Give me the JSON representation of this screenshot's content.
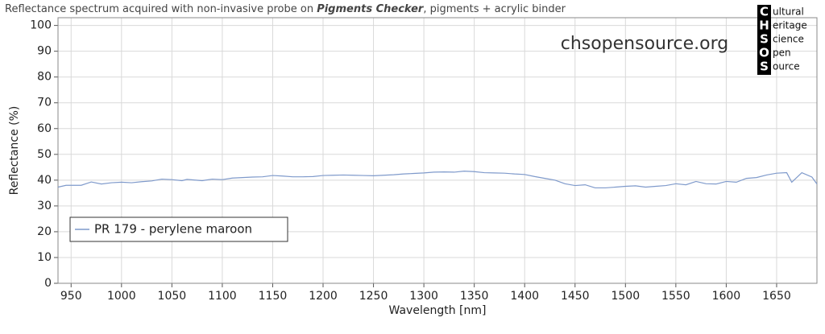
{
  "chart_data": {
    "type": "line",
    "title": [
      "Reflectance spectrum acquired with non-invasive probe on ",
      "Pigments Checker",
      ", pigments + acrylic binder"
    ],
    "watermark": "chsopensource.org",
    "logo": {
      "letters": [
        "C",
        "H",
        "S",
        "O",
        "S"
      ],
      "words": [
        "ultural",
        "eritage",
        "cience",
        "pen",
        "ource"
      ]
    },
    "x_label": "Wavelength [nm]",
    "y_label": "Reflectance (%)",
    "xlim": [
      937,
      1690
    ],
    "ylim": [
      0,
      103
    ],
    "xticks": [
      950,
      1000,
      1050,
      1100,
      1150,
      1200,
      1250,
      1300,
      1350,
      1400,
      1450,
      1500,
      1550,
      1600,
      1650
    ],
    "yticks": [
      0,
      10,
      20,
      30,
      40,
      50,
      60,
      70,
      80,
      90,
      100
    ],
    "grid": true,
    "legend": "lower left",
    "x": [
      937,
      945,
      960,
      970,
      980,
      990,
      1000,
      1010,
      1020,
      1030,
      1040,
      1050,
      1060,
      1065,
      1080,
      1090,
      1100,
      1110,
      1120,
      1130,
      1140,
      1150,
      1160,
      1170,
      1180,
      1190,
      1200,
      1210,
      1220,
      1230,
      1240,
      1250,
      1260,
      1270,
      1280,
      1290,
      1300,
      1310,
      1320,
      1330,
      1340,
      1350,
      1360,
      1370,
      1380,
      1390,
      1400,
      1410,
      1420,
      1430,
      1440,
      1450,
      1460,
      1470,
      1480,
      1490,
      1500,
      1510,
      1520,
      1530,
      1540,
      1550,
      1560,
      1570,
      1580,
      1590,
      1600,
      1610,
      1620,
      1630,
      1640,
      1650,
      1660,
      1665,
      1675,
      1685,
      1690
    ],
    "series": [
      {
        "name": "PR 179 - perylene maroon",
        "color": "#7f9acb",
        "values": [
          37.3,
          38,
          38,
          39.3,
          38.5,
          39,
          39.2,
          39,
          39.4,
          39.7,
          40.4,
          40.2,
          39.8,
          40.3,
          39.8,
          40.4,
          40.2,
          40.8,
          41,
          41.2,
          41.3,
          41.8,
          41.6,
          41.3,
          41.3,
          41.4,
          41.8,
          41.9,
          42,
          41.9,
          41.8,
          41.7,
          41.9,
          42.1,
          42.4,
          42.6,
          42.8,
          43.1,
          43.2,
          43.1,
          43.5,
          43.3,
          42.9,
          42.8,
          42.7,
          42.4,
          42.2,
          41.4,
          40.7,
          40,
          38.6,
          37.9,
          38.2,
          37,
          37,
          37.3,
          37.6,
          37.8,
          37.3,
          37.6,
          37.9,
          38.6,
          38.2,
          39.5,
          38.6,
          38.5,
          39.5,
          39.2,
          40.7,
          41,
          42,
          42.7,
          42.9,
          39.2,
          42.9,
          41.2,
          38.5
        ]
      }
    ]
  }
}
